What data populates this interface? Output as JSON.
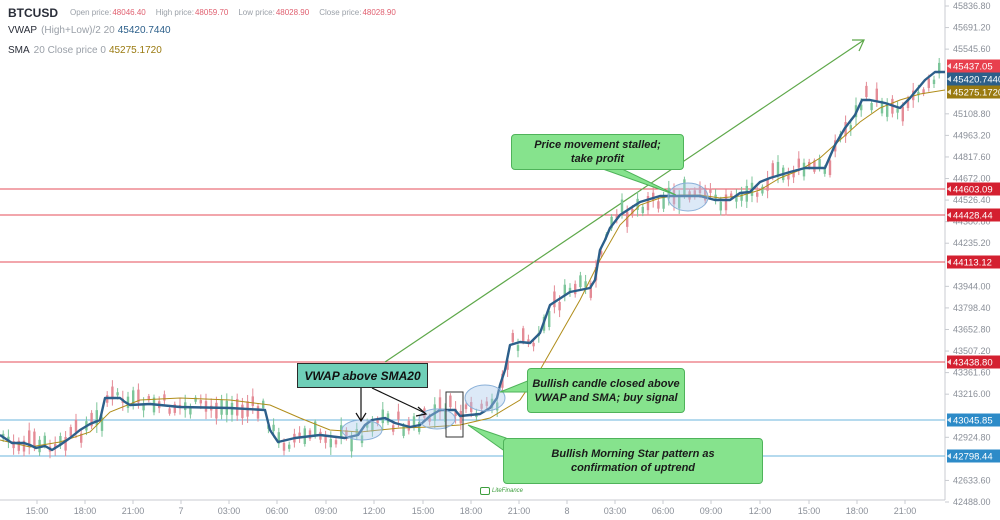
{
  "header": {
    "symbol": "BTCUSD",
    "open_label": "Open price:",
    "open_value": "48046.40",
    "high_label": "High price:",
    "high_value": "48059.70",
    "low_label": "Low price:",
    "low_value": "48028.90",
    "close_label": "Close price:",
    "close_value": "48028.90"
  },
  "indicators": {
    "vwap": {
      "name": "VWAP",
      "params": "(High+Low)/2 20",
      "value": "45420.7440",
      "color": "#2c5f8a"
    },
    "sma": {
      "name": "SMA",
      "params": "20 Close price 0",
      "value": "45275.1720",
      "color": "#b08d1a"
    }
  },
  "annotations": {
    "vwap_above": "VWAP above SMA20",
    "stalled_line1": "Price movement stalled;",
    "stalled_line2": "take profit",
    "bullish_candle_line1": "Bullish candle closed above",
    "bullish_candle_line2": "VWAP and SMA; buy signal",
    "morning_star_line1": "Bullish Morning Star pattern as",
    "morning_star_line2": "confirmation of uptrend"
  },
  "watermark": {
    "text": "LiteFinance"
  },
  "colors": {
    "resistance": "#e0303e",
    "support": "#2d8bc8",
    "vwap": "#2c5f8a",
    "sma": "#b08d1a",
    "bull": "#7cc59a",
    "bear": "#e48b96",
    "trend_arrow": "#5ea84a"
  },
  "chart_data": {
    "type": "line",
    "title": "BTCUSD",
    "xlabel": "",
    "ylabel": "",
    "x_ticks": [
      "15:00",
      "18:00",
      "21:00",
      "7",
      "03:00",
      "06:00",
      "09:00",
      "12:00",
      "15:00",
      "18:00",
      "21:00",
      "8",
      "03:00",
      "06:00",
      "09:00",
      "12:00",
      "15:00",
      "18:00",
      "21:00"
    ],
    "y_ticks": [
      "45836.80",
      "45691.20",
      "45545.60",
      "45108.80",
      "44963.20",
      "44817.60",
      "44672.00",
      "44526.40",
      "44380.80",
      "44235.20",
      "43944.00",
      "43798.40",
      "43652.80",
      "43507.20",
      "43361.60",
      "43216.00",
      "42924.80",
      "42633.60",
      "42488.00"
    ],
    "ylim": [
      42488.0,
      45900.0
    ],
    "grid": false,
    "price_tags": [
      {
        "value": "45437.05",
        "kind": "last-price",
        "color": "#e8404e"
      },
      {
        "value": "45420.7440",
        "kind": "vwap",
        "color": "#2c5f8a"
      },
      {
        "value": "45275.1720",
        "kind": "sma",
        "color": "#9a7a10"
      },
      {
        "value": "44603.09",
        "kind": "resistance",
        "color": "#d42030"
      },
      {
        "value": "44428.44",
        "kind": "resistance",
        "color": "#d42030"
      },
      {
        "value": "44113.12",
        "kind": "resistance",
        "color": "#d42030"
      },
      {
        "value": "43438.80",
        "kind": "resistance",
        "color": "#d42030"
      },
      {
        "value": "43045.85",
        "kind": "support",
        "color": "#2d8bc8"
      },
      {
        "value": "42798.44",
        "kind": "support",
        "color": "#2d8bc8"
      }
    ],
    "horizontal_levels": [
      {
        "price": 44603.09,
        "type": "resistance"
      },
      {
        "price": 44428.44,
        "type": "resistance"
      },
      {
        "price": 44113.12,
        "type": "resistance"
      },
      {
        "price": 43438.8,
        "type": "resistance"
      },
      {
        "price": 43045.85,
        "type": "support"
      },
      {
        "price": 42798.44,
        "type": "support"
      }
    ],
    "series": [
      {
        "name": "VWAP (High+Low)/2 20",
        "x": [
          "13:00",
          "15:00",
          "16:00",
          "17:00",
          "18:00",
          "21:00",
          "7",
          "03:00",
          "06:00",
          "07:00",
          "09:00",
          "11:00",
          "12:00",
          "15:00",
          "16:00",
          "18:00",
          "19:00",
          "20:00",
          "21:00",
          "22:00",
          "23:00",
          "8",
          "01:00",
          "02:00",
          "03:00",
          "06:00",
          "09:00",
          "12:00",
          "13:00",
          "15:00",
          "17:00",
          "18:00",
          "20:00",
          "21:00",
          "23:00"
        ],
        "values": [
          43010,
          42930,
          42900,
          42860,
          43150,
          43220,
          43210,
          43200,
          43190,
          42960,
          42990,
          43050,
          43160,
          43090,
          43120,
          43120,
          43150,
          43430,
          43420,
          43710,
          43760,
          44070,
          44320,
          44490,
          44560,
          44580,
          44570,
          44680,
          44680,
          44780,
          45130,
          44950,
          45240,
          45400,
          45420
        ]
      },
      {
        "name": "SMA 20 Close price 0",
        "x": [
          "13:00",
          "15:00",
          "18:00",
          "21:00",
          "7",
          "03:00",
          "06:00",
          "09:00",
          "12:00",
          "15:00",
          "18:00",
          "21:00",
          "8",
          "03:00",
          "06:00",
          "09:00",
          "12:00",
          "15:00",
          "18:00",
          "21:00",
          "23:00"
        ],
        "values": [
          42980,
          42960,
          43020,
          43180,
          43220,
          43210,
          43130,
          43010,
          43040,
          43080,
          43090,
          43250,
          43600,
          44300,
          44540,
          44580,
          44650,
          44780,
          45000,
          45200,
          45275
        ]
      }
    ],
    "annotations": [
      "VWAP above SMA20",
      "Price movement stalled; take profit",
      "Bullish candle closed above VWAP and SMA; buy signal",
      "Bullish Morning Star pattern as confirmation of uptrend"
    ],
    "legend_position": "top-left"
  }
}
